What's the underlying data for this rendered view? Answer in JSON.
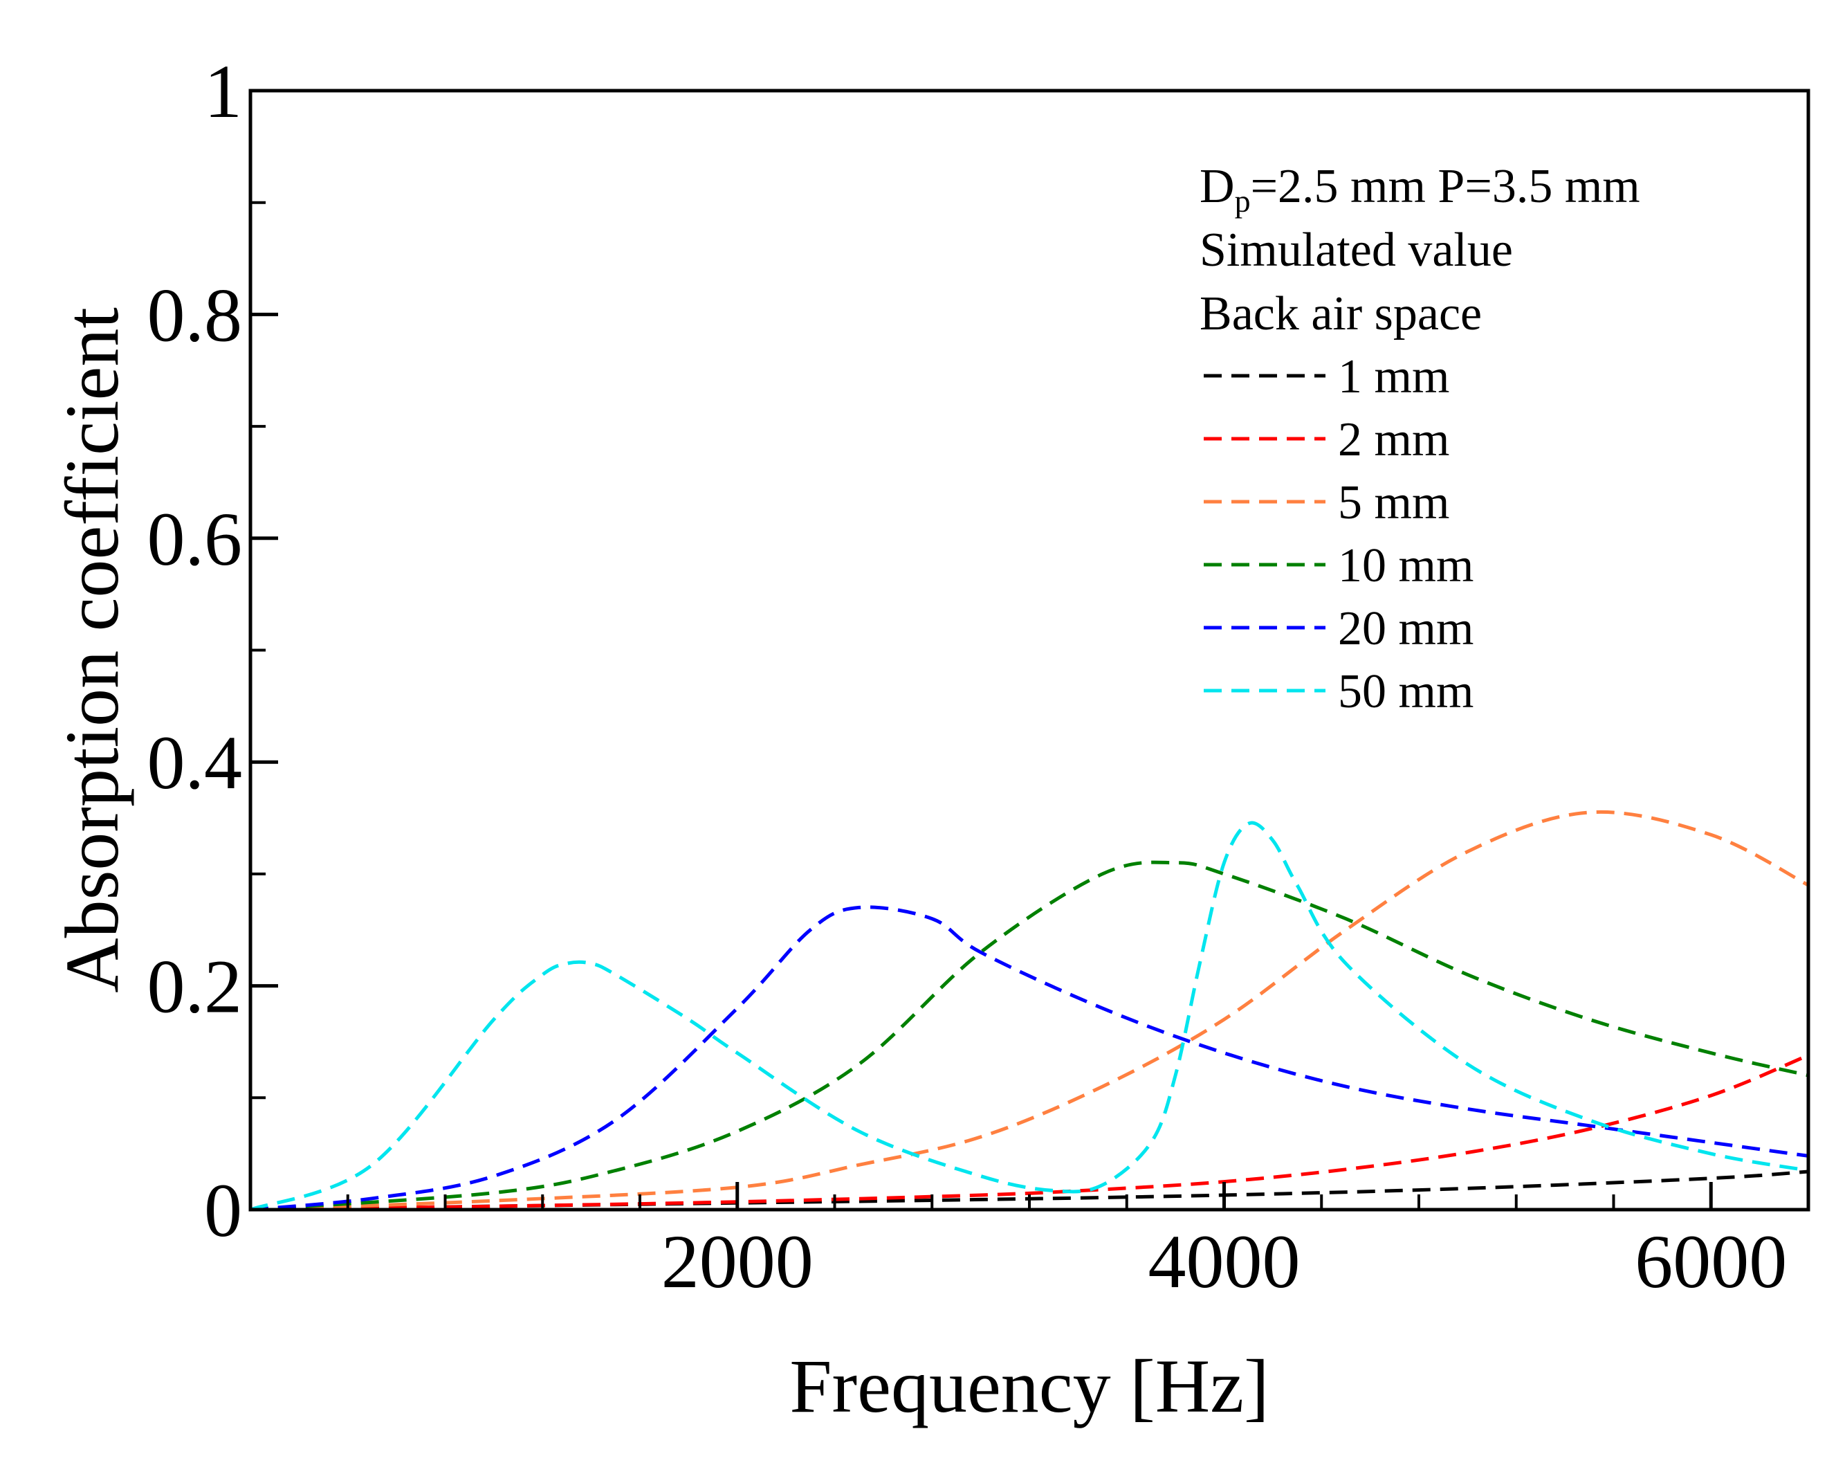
{
  "chart_data": {
    "type": "line",
    "title": "",
    "xlabel": "Frequency [Hz]",
    "ylabel": "Absorption coefficient",
    "xlim": [
      0,
      6400
    ],
    "ylim": [
      0,
      1
    ],
    "grid": false,
    "x_ticks": [
      2000,
      4000,
      6000
    ],
    "y_ticks": [
      0,
      0.2,
      0.4,
      0.6,
      0.8,
      1
    ],
    "y_tick_labels": [
      "0",
      "0.2",
      "0.4",
      "0.6",
      "0.8",
      "1"
    ],
    "legend_position": "top-right",
    "legend_header": {
      "line1_main": "D",
      "line1_sub": "p",
      "line1_rest": "=2.5 mm P=3.5 mm",
      "line2": "Simulated value",
      "line3": "Back air space"
    },
    "series": [
      {
        "name": "1 mm",
        "color": "#000000",
        "x": [
          0,
          1000,
          2000,
          3000,
          4000,
          5000,
          6000,
          6400
        ],
        "y": [
          0,
          0.003,
          0.006,
          0.009,
          0.013,
          0.019,
          0.028,
          0.034
        ]
      },
      {
        "name": "2 mm",
        "color": "#ff0000",
        "x": [
          0,
          1000,
          2000,
          3000,
          3500,
          4000,
          4500,
          5000,
          5500,
          6000,
          6400
        ],
        "y": [
          0,
          0.003,
          0.007,
          0.013,
          0.018,
          0.025,
          0.036,
          0.051,
          0.072,
          0.102,
          0.138
        ]
      },
      {
        "name": "5 mm",
        "color": "#ff8040",
        "x": [
          0,
          1000,
          2000,
          2500,
          3000,
          3500,
          4000,
          4500,
          5000,
          5500,
          6000,
          6400
        ],
        "y": [
          0,
          0.008,
          0.02,
          0.04,
          0.065,
          0.11,
          0.17,
          0.25,
          0.32,
          0.355,
          0.335,
          0.29
        ]
      },
      {
        "name": "10 mm",
        "color": "#008000",
        "x": [
          0,
          1000,
          1500,
          2000,
          2500,
          3000,
          3500,
          3800,
          4000,
          4500,
          5000,
          5500,
          6000,
          6400
        ],
        "y": [
          0,
          0.015,
          0.035,
          0.07,
          0.13,
          0.23,
          0.3,
          0.31,
          0.3,
          0.26,
          0.21,
          0.17,
          0.14,
          0.12
        ]
      },
      {
        "name": "20 mm",
        "color": "#0000ff",
        "x": [
          0,
          500,
          1000,
          1500,
          2000,
          2300,
          2500,
          2800,
          3000,
          3500,
          4000,
          4500,
          5000,
          5500,
          6000,
          6400
        ],
        "y": [
          0,
          0.01,
          0.03,
          0.08,
          0.18,
          0.25,
          0.27,
          0.26,
          0.23,
          0.18,
          0.14,
          0.11,
          0.09,
          0.075,
          0.06,
          0.048
        ]
      },
      {
        "name": "50 mm",
        "color": "#00e5ee",
        "x": [
          0,
          500,
          1000,
          1200,
          1300,
          1400,
          1500,
          1800,
          2000,
          2500,
          3000,
          3300,
          3500,
          3700,
          3800,
          3900,
          4000,
          4100,
          4200,
          4300,
          4500,
          5000,
          5500,
          6000,
          6400
        ],
        "y": [
          0,
          0.04,
          0.17,
          0.21,
          0.22,
          0.22,
          0.21,
          0.17,
          0.14,
          0.07,
          0.03,
          0.017,
          0.022,
          0.06,
          0.12,
          0.22,
          0.31,
          0.345,
          0.33,
          0.29,
          0.22,
          0.13,
          0.08,
          0.05,
          0.035
        ]
      }
    ]
  }
}
